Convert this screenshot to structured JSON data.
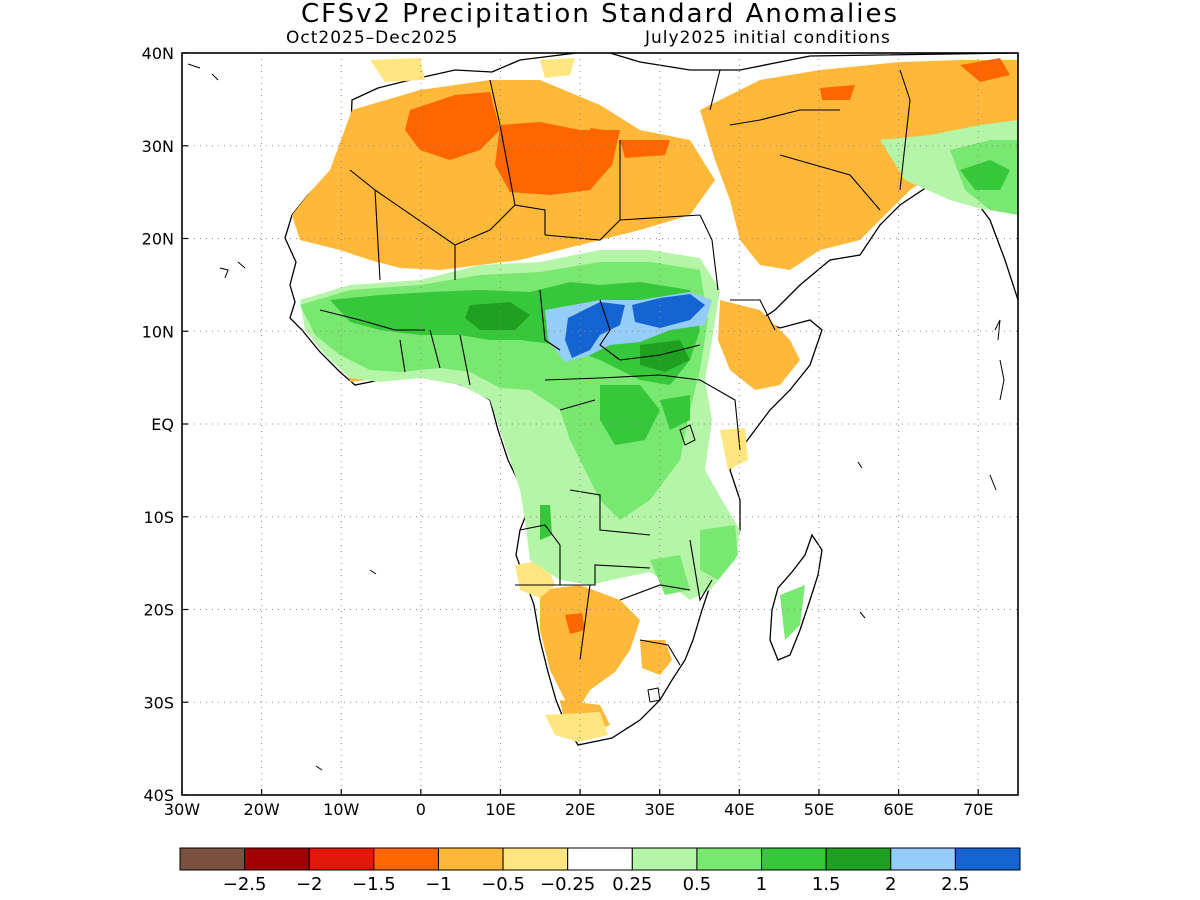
{
  "title": "CFSv2 Precipitation Standard Anomalies",
  "period": "Oct2025–Dec2025",
  "initial_conditions": "July2025 initial conditions",
  "map": {
    "lon_range": [
      -30,
      75
    ],
    "lat_range": [
      -40,
      40
    ],
    "lon_labels": [
      "30W",
      "20W",
      "10W",
      "0",
      "10E",
      "20E",
      "30E",
      "40E",
      "50E",
      "60E",
      "70E"
    ],
    "lat_labels": [
      "40N",
      "30N",
      "20N",
      "10N",
      "EQ",
      "10S",
      "20S",
      "30S",
      "40S"
    ],
    "grid": true
  },
  "colorbar": {
    "colors": [
      "#7a5040",
      "#a00000",
      "#e01808",
      "#ff6600",
      "#ffb83a",
      "#ffe680",
      "#ffffff",
      "#b4f5a8",
      "#78e870",
      "#36c83a",
      "#20a020",
      "#96cdf8",
      "#1464d2"
    ],
    "labels": [
      "−2.5",
      "−2",
      "−1.5",
      "−1",
      "−0.5",
      "−0.25",
      "0.25",
      "0.5",
      "1",
      "1.5",
      "2",
      "2.5"
    ]
  },
  "legend": {
    "dry_colors": {
      "strong": "#ff6600",
      "moderate": "#ffb83a",
      "weak": "#ffe680"
    },
    "wet_colors": {
      "weak": "#b4f5a8",
      "moderate": "#78e870",
      "strong": "#36c83a",
      "very_strong": "#20a020",
      "blue_light": "#96cdf8",
      "blue_dark": "#1464d2"
    }
  }
}
